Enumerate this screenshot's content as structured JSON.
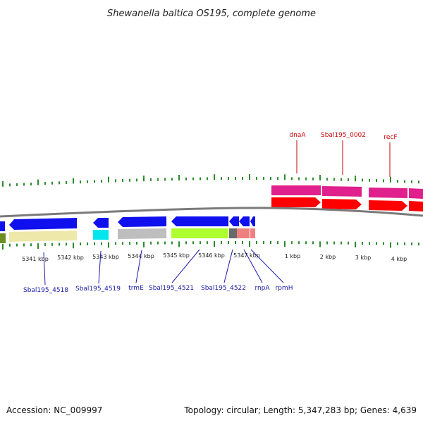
{
  "title": "Shewanella baltica OS195, complete genome",
  "footer": {
    "accession": "Accession: NC_009997",
    "summary": "Topology: circular; Length: 5,347,283 bp; Genes: 4,639"
  },
  "colors": {
    "tick": "#2e8b2e",
    "backbone": "#808080",
    "top_label": "#cc0000",
    "bottom_label": "#1a1aa6"
  },
  "axis_labels": [
    "5341 kbp",
    "5342 kbp",
    "5343 kbp",
    "5344 kbp",
    "5345 kbp",
    "5346 kbp",
    "5347 kbp",
    "1 kbp",
    "2 kbp",
    "3 kbp",
    "4 kbp"
  ],
  "top_genes": [
    {
      "name": "dnaA"
    },
    {
      "name": "Sbal195_0002"
    },
    {
      "name": "recF"
    }
  ],
  "bottom_genes": [
    {
      "name": "Sbal195_4518"
    },
    {
      "name": "Sbal195_4519"
    },
    {
      "name": "trmE"
    },
    {
      "name": "Sbal195_4521"
    },
    {
      "name": "Sbal195_4522"
    },
    {
      "name": "rnpA"
    },
    {
      "name": "rpmH"
    }
  ]
}
